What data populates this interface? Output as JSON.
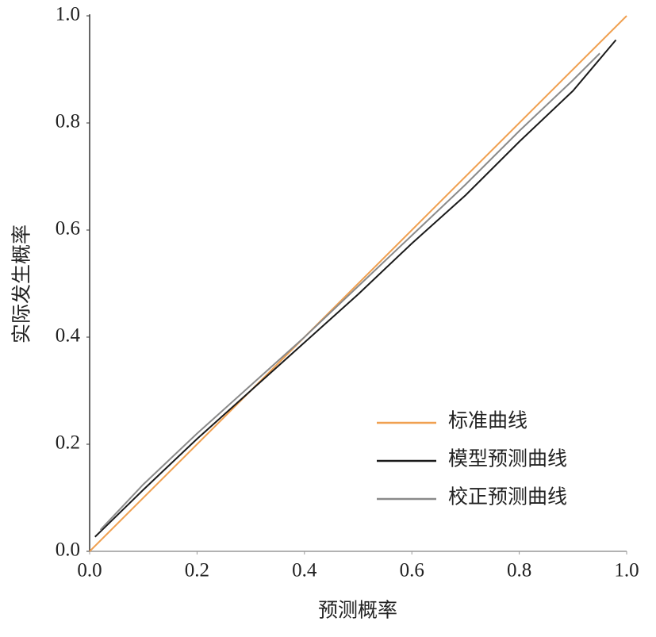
{
  "chart_data": {
    "type": "line",
    "x_label": "预测概率",
    "y_label": "实际发生概率",
    "xlim": [
      0,
      1
    ],
    "ylim": [
      0,
      1
    ],
    "xticks": [
      {
        "value": 0,
        "label": "0.0"
      },
      {
        "value": 0.2,
        "label": "0.2"
      },
      {
        "value": 0.4,
        "label": "0.4"
      },
      {
        "value": 0.6,
        "label": "0.6"
      },
      {
        "value": 0.8,
        "label": "0.8"
      },
      {
        "value": 1,
        "label": "1.0"
      }
    ],
    "yticks": [
      {
        "value": 0,
        "label": "0.0"
      },
      {
        "value": 0.2,
        "label": "0.2"
      },
      {
        "value": 0.4,
        "label": "0.4"
      },
      {
        "value": 0.6,
        "label": "0.6"
      },
      {
        "value": 0.8,
        "label": "0.8"
      },
      {
        "value": 1,
        "label": "1.0"
      }
    ],
    "grid": false,
    "legend": "lower right",
    "series": [
      {
        "name": "标准曲线",
        "color": "#f0a050",
        "x": [
          0,
          1
        ],
        "values": [
          0,
          1
        ]
      },
      {
        "name": "模型预测曲线",
        "color": "#1a1a1a",
        "x": [
          0.01,
          0.1,
          0.2,
          0.3,
          0.4,
          0.5,
          0.6,
          0.7,
          0.8,
          0.9,
          0.98
        ],
        "values": [
          0.027,
          0.115,
          0.21,
          0.3,
          0.39,
          0.48,
          0.575,
          0.665,
          0.765,
          0.86,
          0.955
        ]
      },
      {
        "name": "校正预测曲线",
        "color": "#8a8a8a",
        "x": [
          0.02,
          0.1,
          0.2,
          0.3,
          0.4,
          0.5,
          0.6,
          0.7,
          0.8,
          0.9,
          0.95
        ],
        "values": [
          0.04,
          0.125,
          0.22,
          0.31,
          0.4,
          0.495,
          0.59,
          0.685,
          0.785,
          0.88,
          0.93
        ]
      }
    ]
  }
}
